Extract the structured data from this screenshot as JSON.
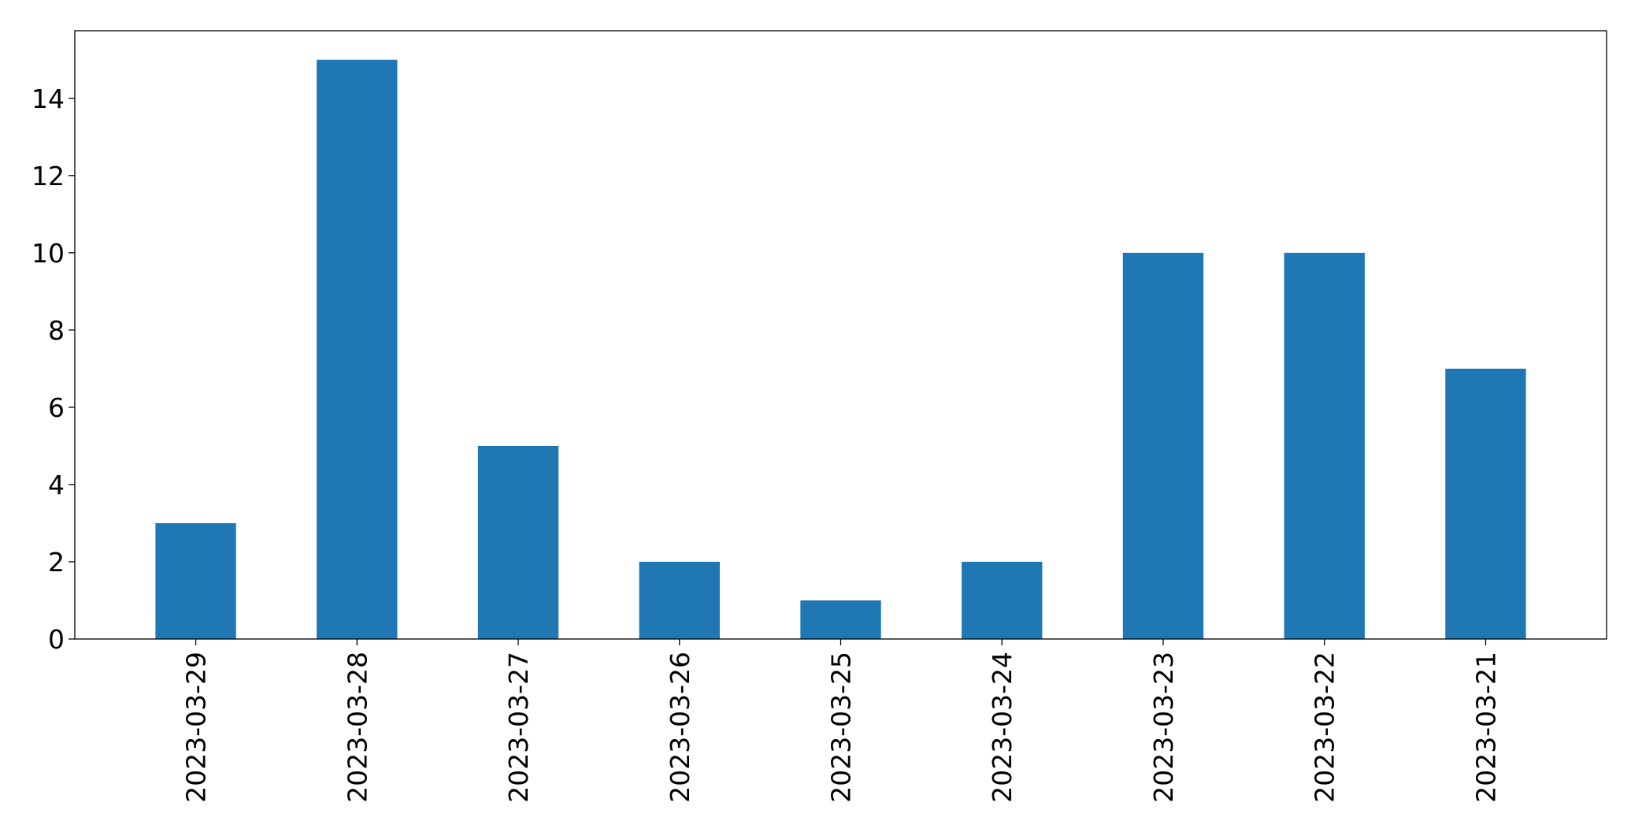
{
  "chart_data": {
    "type": "bar",
    "categories": [
      "2023-03-29",
      "2023-03-28",
      "2023-03-27",
      "2023-03-26",
      "2023-03-25",
      "2023-03-24",
      "2023-03-23",
      "2023-03-22",
      "2023-03-21"
    ],
    "values": [
      3,
      15,
      5,
      2,
      1,
      2,
      10,
      10,
      7
    ],
    "yticks": [
      0,
      2,
      4,
      6,
      8,
      10,
      12,
      14
    ],
    "ytick_labels": [
      "0",
      "2",
      "4",
      "6",
      "8",
      "10",
      "12",
      "14"
    ],
    "ylim": [
      0,
      15.75
    ],
    "xlabel": "",
    "ylabel": "",
    "title": "",
    "bar_color": "#1f77b4",
    "grid": false,
    "legend": false
  }
}
